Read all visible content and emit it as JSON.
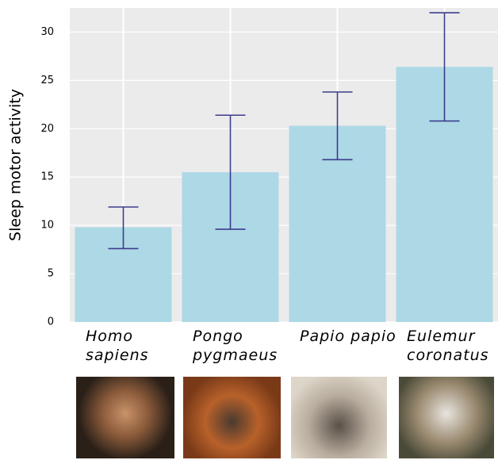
{
  "chart_data": {
    "type": "bar",
    "y_label": "Sleep motor activity",
    "categories": [
      "Homo sapiens",
      "Pongo pygmaeus",
      "Papio papio",
      "Eulemur coronatus"
    ],
    "series": [
      {
        "values": [
          9.8,
          15.5,
          20.3,
          26.4
        ],
        "lower": [
          7.6,
          9.6,
          16.8,
          20.8
        ],
        "upper": [
          11.9,
          21.4,
          23.8,
          32.0
        ],
        "color": "#add8e6",
        "error_color": "#3c3c8c"
      }
    ],
    "ylim": [
      0,
      32.5
    ],
    "yticks": [
      0,
      5,
      10,
      15,
      20,
      25,
      30
    ],
    "grid": true
  }
}
